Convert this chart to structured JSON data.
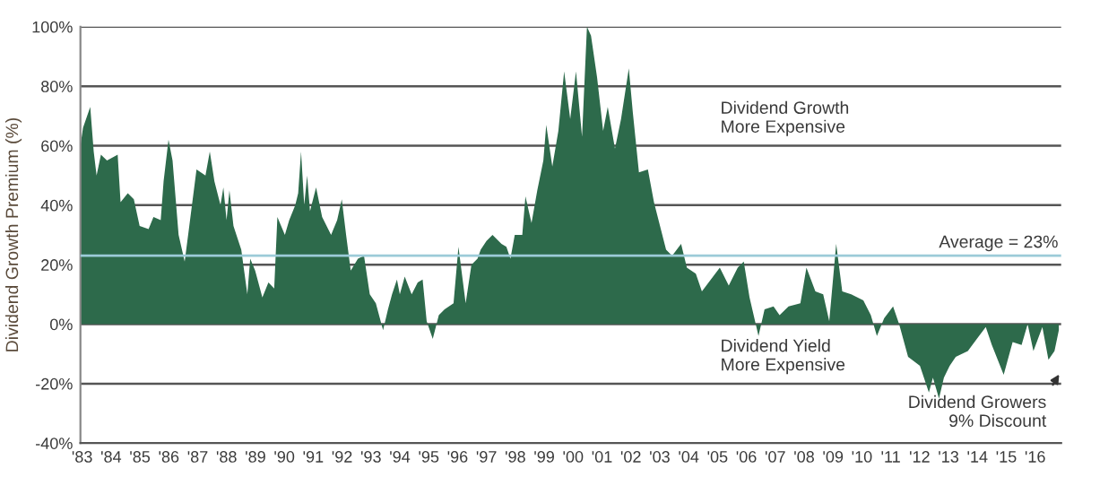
{
  "chart_data": {
    "type": "area",
    "ylabel": "Dividend Growth Premium (%)",
    "x": [
      1982.94,
      1983.03,
      1983.28,
      1983.4,
      1983.5,
      1983.65,
      1983.86,
      1984.23,
      1984.33,
      1984.58,
      1984.79,
      1984.99,
      1985.3,
      1985.47,
      1985.72,
      1985.82,
      1985.99,
      1986.13,
      1986.34,
      1986.55,
      1986.71,
      1986.96,
      1987.27,
      1987.42,
      1987.58,
      1987.79,
      1987.89,
      1988.0,
      1988.1,
      1988.24,
      1988.41,
      1988.51,
      1988.72,
      1988.82,
      1988.99,
      1989.24,
      1989.45,
      1989.65,
      1989.76,
      1990.02,
      1990.17,
      1990.38,
      1990.48,
      1990.58,
      1990.69,
      1990.79,
      1990.89,
      1991.1,
      1991.31,
      1991.62,
      1991.83,
      1991.99,
      1992.14,
      1992.3,
      1992.55,
      1992.76,
      1992.96,
      1993.17,
      1993.42,
      1993.59,
      1993.73,
      1993.9,
      1994.0,
      1994.17,
      1994.41,
      1994.62,
      1994.79,
      1994.93,
      1995.14,
      1995.35,
      1995.55,
      1995.86,
      1996.03,
      1996.28,
      1996.48,
      1996.69,
      1996.8,
      1997.0,
      1997.21,
      1997.52,
      1997.69,
      1997.83,
      1997.98,
      1998.24,
      1998.35,
      1998.56,
      1998.76,
      1998.97,
      1999.07,
      1999.28,
      1999.49,
      1999.69,
      1999.9,
      2000.1,
      2000.31,
      2000.48,
      2000.62,
      2000.83,
      2001.04,
      2001.2,
      2001.45,
      2001.66,
      2001.93,
      2002.07,
      2002.28,
      2002.59,
      2002.8,
      2003.01,
      2003.22,
      2003.43,
      2003.74,
      2003.94,
      2004.25,
      2004.46,
      2004.77,
      2005.08,
      2005.39,
      2005.7,
      2005.91,
      2006.11,
      2006.42,
      2006.63,
      2006.94,
      2007.15,
      2007.46,
      2007.87,
      2008.08,
      2008.39,
      2008.66,
      2008.87,
      2009.11,
      2009.32,
      2009.63,
      2010.05,
      2010.31,
      2010.52,
      2010.77,
      2011.08,
      2011.29,
      2011.6,
      2012.01,
      2012.32,
      2012.46,
      2012.67,
      2012.84,
      2013.04,
      2013.25,
      2013.67,
      2013.98,
      2014.29,
      2014.5,
      2014.91,
      2015.22,
      2015.53,
      2015.74,
      2015.94,
      2016.25,
      2016.46,
      2016.67,
      2016.82
    ],
    "series": [
      {
        "color": "#2d6a4b",
        "values": [
          60,
          66,
          73,
          58,
          50,
          57,
          55,
          57,
          41,
          44,
          42,
          33,
          32,
          36,
          35,
          48,
          62,
          55,
          30,
          21,
          33,
          52,
          50,
          58,
          48,
          40,
          46,
          35,
          45,
          33,
          28,
          25,
          10,
          22,
          18,
          9,
          14,
          12,
          36,
          30,
          35,
          40,
          44,
          58,
          40,
          50,
          38,
          46,
          36,
          30,
          35,
          42,
          30,
          18,
          22,
          23,
          10,
          7,
          -2,
          5,
          10,
          15,
          10,
          16,
          10,
          14,
          15,
          1,
          -5,
          3,
          5,
          7,
          26,
          7,
          20,
          22,
          25,
          28,
          30,
          27,
          26,
          22,
          30,
          30,
          43,
          34,
          45,
          55,
          67,
          53,
          65,
          85,
          69,
          85,
          63,
          100,
          97,
          83,
          65,
          73,
          59,
          69,
          86,
          71,
          51,
          52,
          41,
          33,
          25,
          23,
          27,
          19,
          17,
          11,
          15,
          19,
          13,
          19,
          21,
          9,
          -4,
          5,
          6,
          3,
          6,
          7,
          19,
          11,
          10,
          1,
          27,
          11,
          10,
          8,
          3,
          -4,
          2,
          6,
          0,
          -11,
          -14,
          -23,
          -18,
          -25,
          -18,
          -14,
          -11,
          -9,
          -5,
          -1,
          -7,
          -17,
          -6,
          -7,
          0,
          -9,
          -1,
          -12,
          -9,
          -2
        ]
      }
    ],
    "xlim": [
      1982.94,
      2016.9
    ],
    "xticks": [
      {
        "value": 1983,
        "label": "'83"
      },
      {
        "value": 1984,
        "label": "'84"
      },
      {
        "value": 1985,
        "label": "'85"
      },
      {
        "value": 1986,
        "label": "'86"
      },
      {
        "value": 1987,
        "label": "'87"
      },
      {
        "value": 1988,
        "label": "'88"
      },
      {
        "value": 1989,
        "label": "'89"
      },
      {
        "value": 1990,
        "label": "'90"
      },
      {
        "value": 1991,
        "label": "'91"
      },
      {
        "value": 1992,
        "label": "'92"
      },
      {
        "value": 1993,
        "label": "'93"
      },
      {
        "value": 1994,
        "label": "'94"
      },
      {
        "value": 1995,
        "label": "'95"
      },
      {
        "value": 1996,
        "label": "'96"
      },
      {
        "value": 1997,
        "label": "'97"
      },
      {
        "value": 1998,
        "label": "'98"
      },
      {
        "value": 1999,
        "label": "'99"
      },
      {
        "value": 2000,
        "label": "'00"
      },
      {
        "value": 2001,
        "label": "'01"
      },
      {
        "value": 2002,
        "label": "'02"
      },
      {
        "value": 2003,
        "label": "'03"
      },
      {
        "value": 2004,
        "label": "'04"
      },
      {
        "value": 2005,
        "label": "'05"
      },
      {
        "value": 2006,
        "label": "'06"
      },
      {
        "value": 2007,
        "label": "'07"
      },
      {
        "value": 2008,
        "label": "'08"
      },
      {
        "value": 2009,
        "label": "'09"
      },
      {
        "value": 2010,
        "label": "'10"
      },
      {
        "value": 2011,
        "label": "'11"
      },
      {
        "value": 2012,
        "label": "'12"
      },
      {
        "value": 2013,
        "label": "'13"
      },
      {
        "value": 2014,
        "label": "'14"
      },
      {
        "value": 2015,
        "label": "'15"
      },
      {
        "value": 2016,
        "label": "'16"
      }
    ],
    "ylim": [
      -40,
      100
    ],
    "yticks": [
      {
        "value": -40,
        "label": "-40%"
      },
      {
        "value": -20,
        "label": "-20%"
      },
      {
        "value": 0,
        "label": "0%"
      },
      {
        "value": 20,
        "label": "20%"
      },
      {
        "value": 40,
        "label": "40%"
      },
      {
        "value": 60,
        "label": "60%"
      },
      {
        "value": 80,
        "label": "80%"
      },
      {
        "value": 100,
        "label": "100%"
      }
    ],
    "grid": "y",
    "ref_lines": [
      {
        "axis": "y",
        "value": 23,
        "label": "Average = 23%",
        "color": "#9ccbd8"
      }
    ],
    "annotations": [
      "Dividend Growth\nMore Expensive",
      "Dividend Yield\nMore Expensive",
      "Dividend Growers\n9% Discount"
    ]
  }
}
